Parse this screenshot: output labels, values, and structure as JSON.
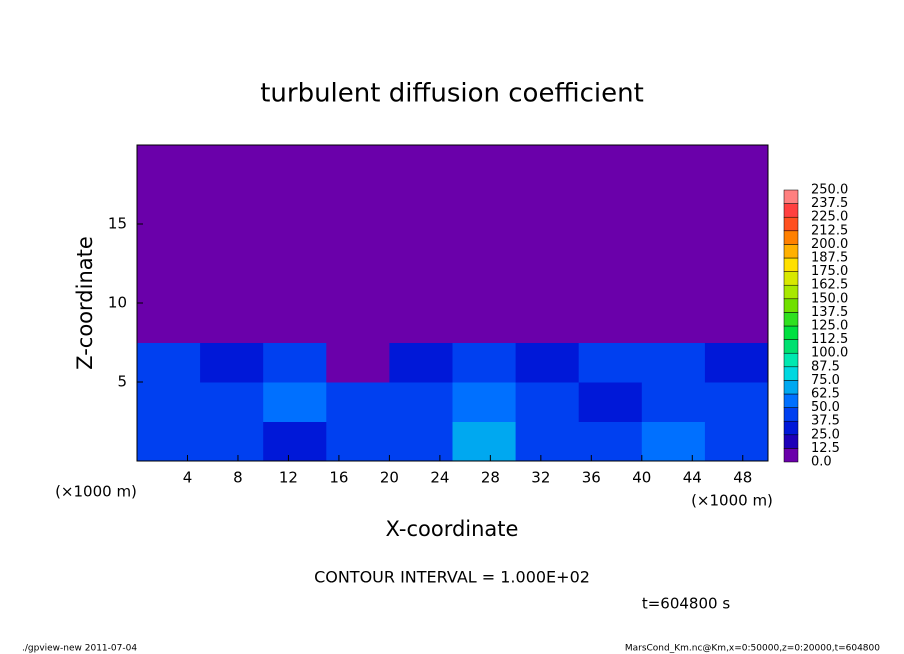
{
  "chart_data": {
    "type": "heatmap",
    "title": "turbulent diffusion coefficient",
    "xlabel": "X-coordinate",
    "ylabel": "Z-coordinate",
    "x_unit": "(×1000 m)",
    "y_unit": "(×1000 m)",
    "annotations": [
      "CONTOUR INTERVAL = 1.000E+02",
      "t=604800 s"
    ],
    "footer_left": "./gpview-new  2011-07-04",
    "footer_right": "MarsCond_Km.nc@Km,x=0:50000,z=0:20000,t=604800",
    "xlim": [
      0,
      50
    ],
    "ylim": [
      0,
      20
    ],
    "xticks": [
      4,
      8,
      12,
      16,
      20,
      24,
      28,
      32,
      36,
      40,
      44,
      48
    ],
    "yticks": [
      5,
      10,
      15
    ],
    "x": [
      2.5,
      7.5,
      12.5,
      17.5,
      22.5,
      27.5,
      32.5,
      37.5,
      42.5,
      47.5
    ],
    "y": [
      1.25,
      3.75,
      6.25,
      8.75,
      11.25,
      13.75,
      16.25,
      18.75
    ],
    "z": [
      [
        40,
        45,
        35,
        45,
        40,
        70,
        45,
        40,
        55,
        40
      ],
      [
        45,
        40,
        50,
        40,
        45,
        50,
        40,
        35,
        45,
        40
      ],
      [
        40,
        35,
        45,
        5,
        30,
        40,
        35,
        40,
        45,
        35
      ],
      [
        3,
        5,
        3,
        5,
        5,
        8,
        5,
        3,
        5,
        5
      ],
      [
        5,
        3,
        5,
        8,
        5,
        10,
        8,
        10,
        5,
        5
      ],
      [
        3,
        8,
        3,
        3,
        3,
        3,
        5,
        8,
        5,
        3
      ],
      [
        0,
        0,
        0,
        0,
        0,
        0,
        0,
        0,
        0,
        0
      ],
      [
        0,
        0,
        0,
        0,
        0,
        0,
        0,
        0,
        0,
        0
      ]
    ],
    "levels": [
      {
        "value": 0,
        "label": "0.0"
      },
      12.5,
      {
        "value": 25,
        "label": "25.0"
      },
      37.5,
      {
        "value": 50,
        "label": "50.0"
      },
      62.5,
      {
        "value": 75,
        "label": "75.0"
      },
      87.5,
      {
        "value": 100,
        "label": "100.0"
      },
      112.5,
      {
        "value": 125,
        "label": "125.0"
      },
      137.5,
      {
        "value": 150,
        "label": "150.0"
      },
      162.5,
      {
        "value": 175,
        "label": "175.0"
      },
      187.5,
      {
        "value": 200,
        "label": "200.0"
      },
      212.5,
      {
        "value": 225,
        "label": "225.0"
      },
      237.5,
      {
        "value": 250,
        "label": "250.0"
      }
    ],
    "colors": [
      "#6a00aa",
      "#1e00b8",
      "#0018d8",
      "#0040f0",
      "#0070ff",
      "#00a8f0",
      "#00d8e0",
      "#00e8b0",
      "#00e070",
      "#00e040",
      "#30e020",
      "#70e000",
      "#a8e800",
      "#d8e800",
      "#ffe000",
      "#ffb000",
      "#ff8000",
      "#ff5020",
      "#ff4040",
      "#ff8080"
    ]
  }
}
